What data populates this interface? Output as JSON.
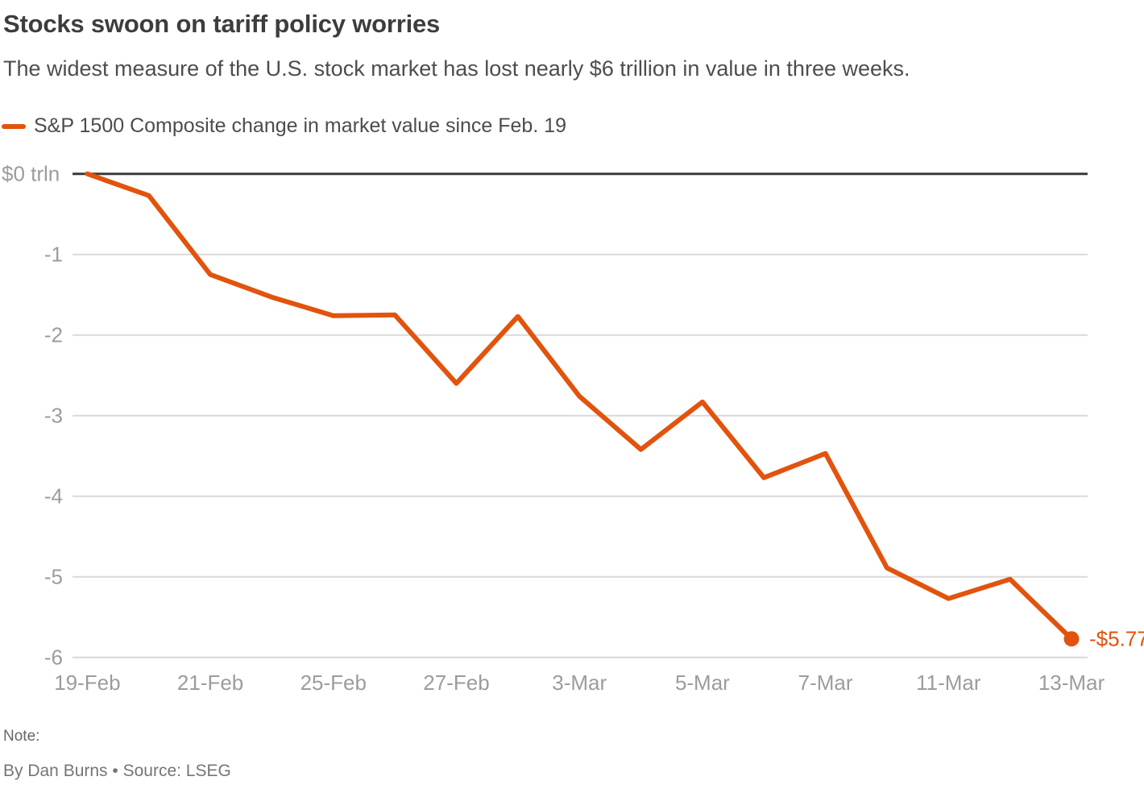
{
  "header": {
    "title": "Stocks swoon on tariff policy worries",
    "subtitle": "The widest measure of the U.S. stock market has lost nearly $6 trillion in value in three weeks."
  },
  "legend": {
    "label": "S&P 1500 Composite change in market value since Feb. 19",
    "swatch_color": "#e2530d"
  },
  "chart_data": {
    "type": "line",
    "title": "Stocks swoon on tariff policy worries",
    "x": [
      "19-Feb",
      "20-Feb",
      "21-Feb",
      "24-Feb",
      "25-Feb",
      "26-Feb",
      "27-Feb",
      "28-Feb",
      "3-Mar",
      "4-Mar",
      "5-Mar",
      "6-Mar",
      "7-Mar",
      "10-Mar",
      "11-Mar",
      "12-Mar",
      "13-Mar"
    ],
    "series": [
      {
        "name": "S&P 1500 Composite change in market value since Feb. 19",
        "values": [
          0.0,
          -0.27,
          -1.25,
          -1.53,
          -1.76,
          -1.75,
          -2.6,
          -1.77,
          -2.76,
          -3.42,
          -2.83,
          -3.77,
          -3.47,
          -4.89,
          -5.27,
          -5.03,
          -5.77
        ]
      }
    ],
    "x_ticks": [
      {
        "index": 0,
        "label": "19-Feb"
      },
      {
        "index": 2,
        "label": "21-Feb"
      },
      {
        "index": 4,
        "label": "25-Feb"
      },
      {
        "index": 6,
        "label": "27-Feb"
      },
      {
        "index": 8,
        "label": "3-Mar"
      },
      {
        "index": 10,
        "label": "5-Mar"
      },
      {
        "index": 12,
        "label": "7-Mar"
      },
      {
        "index": 14,
        "label": "11-Mar"
      },
      {
        "index": 16,
        "label": "13-Mar"
      }
    ],
    "y_ticks": [
      {
        "value": 0,
        "label": "$0 trln"
      },
      {
        "value": -1,
        "label": "-1"
      },
      {
        "value": -2,
        "label": "-2"
      },
      {
        "value": -3,
        "label": "-3"
      },
      {
        "value": -4,
        "label": "-4"
      },
      {
        "value": -5,
        "label": "-5"
      },
      {
        "value": -6,
        "label": "-6"
      }
    ],
    "ylim": [
      -6,
      0
    ],
    "ylabel": "$ trln",
    "xlabel": "",
    "grid": "horizontal",
    "legend_position": "top-left",
    "end_label": "-$5.77",
    "line_color": "#e2530d",
    "zero_line_color": "#3a3a3a",
    "grid_color": "#d9d9d9",
    "tick_label_color": "#9c9c9c"
  },
  "footer": {
    "note_label": "Note:",
    "byline": "By Dan Burns • Source: LSEG"
  }
}
